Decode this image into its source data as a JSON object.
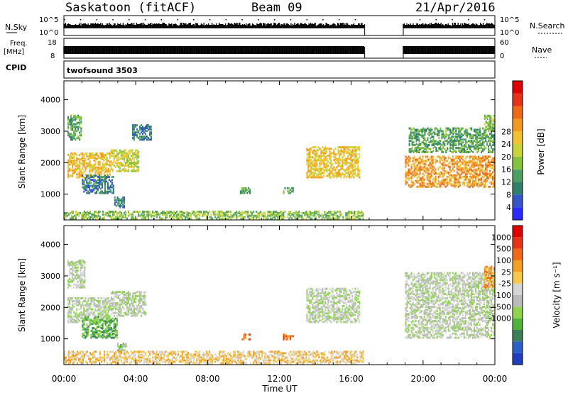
{
  "header": {
    "station": "Saskatoon (fitACF)",
    "beam": "Beam 09",
    "date": "21/Apr/2016"
  },
  "status_panels": {
    "nsky_label": "N.Sky",
    "nsky_ticks": [
      "10^5",
      "10^0"
    ],
    "nsearch_label": "N.Search",
    "nsearch_ticks": [
      "10^5",
      "10^0"
    ],
    "freq_label_line1": "Freq.",
    "freq_label_line2": "[MHz]",
    "freq_ticks": [
      "18",
      "8"
    ],
    "nave_label": "Nave",
    "nave_ticks": [
      "60",
      "0"
    ],
    "cpid_label": "CPID",
    "cpid_value": "twofsound 3503"
  },
  "chart_data": [
    {
      "type": "heatmap",
      "name": "power",
      "title": "",
      "xlabel": "Time UT",
      "ylabel": "Slant Range [km]",
      "x_ticks": [
        "00:00",
        "04:00",
        "08:00",
        "12:00",
        "16:00",
        "20:00",
        "00:00"
      ],
      "x_range_hours": [
        0,
        24
      ],
      "y_ticks": [
        1000,
        2000,
        3000,
        4000
      ],
      "ylim": [
        180,
        4600
      ],
      "data_gap_hours": [
        16.75,
        18.9
      ],
      "colorbar": {
        "label": "Power [dB]",
        "ticks": [
          "4",
          "8",
          "12",
          "16",
          "20",
          "24",
          "28"
        ],
        "colors": [
          "#2b2bff",
          "#3456c8",
          "#2f7f6a",
          "#4f9f63",
          "#86c23e",
          "#c8d43a",
          "#f2c230",
          "#f39a1e",
          "#f06a16",
          "#e63218",
          "#e10000"
        ]
      },
      "echo_regions": [
        {
          "t0": 0.2,
          "t1": 2.6,
          "r0": 1500,
          "r1": 2300,
          "level": 6
        },
        {
          "t0": 0.2,
          "t1": 1.0,
          "r0": 2700,
          "r1": 3500,
          "level": 3
        },
        {
          "t0": 1.0,
          "t1": 2.8,
          "r0": 1000,
          "r1": 1600,
          "level": 2
        },
        {
          "t0": 2.6,
          "t1": 4.2,
          "r0": 1700,
          "r1": 2400,
          "level": 5
        },
        {
          "t0": 3.8,
          "t1": 4.9,
          "r0": 2700,
          "r1": 3200,
          "level": 2
        },
        {
          "t0": 2.8,
          "t1": 3.4,
          "r0": 550,
          "r1": 900,
          "level": 2
        },
        {
          "t0": 9.8,
          "t1": 10.4,
          "r0": 1000,
          "r1": 1200,
          "level": 3
        },
        {
          "t0": 12.2,
          "t1": 12.8,
          "r0": 1000,
          "r1": 1200,
          "level": 3
        },
        {
          "t0": 13.5,
          "t1": 16.5,
          "r0": 1500,
          "r1": 2500,
          "level": 6
        },
        {
          "t0": 0.0,
          "t1": 16.7,
          "r0": 190,
          "r1": 450,
          "level": 4
        },
        {
          "t0": 19.0,
          "t1": 24.0,
          "r0": 1200,
          "r1": 2200,
          "level": 7
        },
        {
          "t0": 19.2,
          "t1": 24.0,
          "r0": 2300,
          "r1": 3100,
          "level": 3
        },
        {
          "t0": 23.4,
          "t1": 24.0,
          "r0": 3000,
          "r1": 3500,
          "level": 4
        }
      ]
    },
    {
      "type": "heatmap",
      "name": "velocity",
      "title": "",
      "xlabel": "Time UT",
      "ylabel": "Slant Range [km]",
      "x_ticks": [
        "00:00",
        "04:00",
        "08:00",
        "12:00",
        "16:00",
        "20:00",
        "00:00"
      ],
      "x_range_hours": [
        0,
        24
      ],
      "y_ticks": [
        1000,
        2000,
        3000,
        4000
      ],
      "ylim": [
        180,
        4600
      ],
      "data_gap_hours": [
        16.75,
        18.9
      ],
      "colorbar": {
        "label": "Velocity [m s⁻¹]",
        "ticks": [
          "1000",
          "500",
          "100",
          "25",
          "-25",
          "-100",
          "-500",
          "-1000"
        ],
        "colors": [
          "#1e3fbf",
          "#2a5fc7",
          "#3a7f55",
          "#4fb33a",
          "#8fd44f",
          "#bbbbbb",
          "#d6d6d6",
          "#f4c94a",
          "#f3a020",
          "#f06a16",
          "#e63218",
          "#e10000"
        ]
      },
      "echo_regions": [
        {
          "t0": 0.2,
          "t1": 2.6,
          "r0": 1500,
          "r1": 2300,
          "level": 5
        },
        {
          "t0": 0.2,
          "t1": 1.2,
          "r0": 2600,
          "r1": 3500,
          "level": 5
        },
        {
          "t0": 1.0,
          "t1": 3.0,
          "r0": 1000,
          "r1": 1700,
          "level": 3
        },
        {
          "t0": 2.6,
          "t1": 4.6,
          "r0": 1700,
          "r1": 2500,
          "level": 5
        },
        {
          "t0": 2.9,
          "t1": 3.5,
          "r0": 600,
          "r1": 850,
          "level": 4
        },
        {
          "t0": 9.9,
          "t1": 10.4,
          "r0": 950,
          "r1": 1150,
          "level": 9
        },
        {
          "t0": 12.2,
          "t1": 12.8,
          "r0": 950,
          "r1": 1150,
          "level": 9
        },
        {
          "t0": 13.5,
          "t1": 16.5,
          "r0": 1500,
          "r1": 2600,
          "level": 5
        },
        {
          "t0": 0.0,
          "t1": 16.7,
          "r0": 190,
          "r1": 600,
          "level": 7
        },
        {
          "t0": 19.0,
          "t1": 24.0,
          "r0": 1000,
          "r1": 3100,
          "level": 5
        },
        {
          "t0": 23.4,
          "t1": 24.0,
          "r0": 2600,
          "r1": 3300,
          "level": 8
        }
      ]
    }
  ]
}
